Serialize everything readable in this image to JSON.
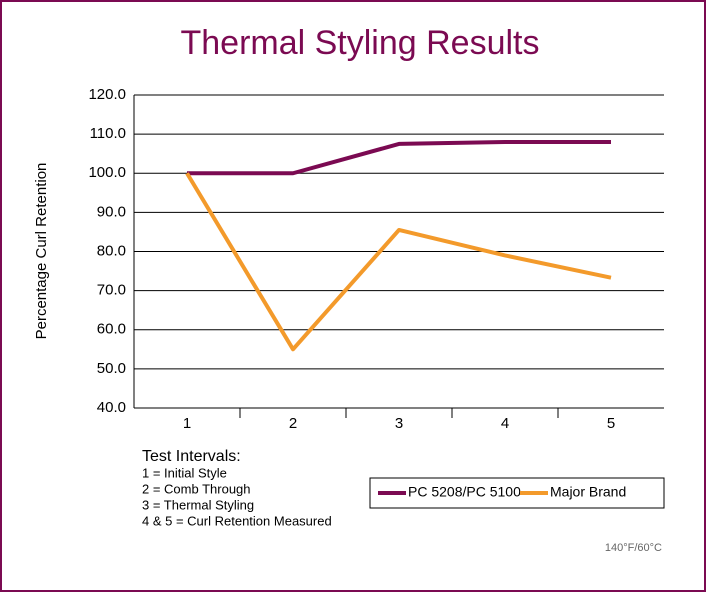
{
  "chart_data": {
    "type": "line",
    "title": "Thermal Styling Results",
    "y_label": "Percentage Curl Retention",
    "categories": [
      "1",
      "2",
      "3",
      "4",
      "5"
    ],
    "series": [
      {
        "name": "PC 5208/PC 5100",
        "color": "#7b0a52",
        "values": [
          100,
          100,
          107.5,
          108,
          108
        ]
      },
      {
        "name": "Major Brand",
        "color": "#f39a2b",
        "values": [
          100,
          55,
          85.5,
          79,
          73.3
        ]
      }
    ],
    "ylim": [
      40,
      120
    ],
    "yticks": [
      {
        "value": 40,
        "label": "40.0"
      },
      {
        "value": 50,
        "label": "50.0"
      },
      {
        "value": 60,
        "label": "60.0"
      },
      {
        "value": 70,
        "label": "70.0"
      },
      {
        "value": 80,
        "label": "80.0"
      },
      {
        "value": 90,
        "label": "90.0"
      },
      {
        "value": 100,
        "label": "100.0"
      },
      {
        "value": 110,
        "label": "110.0"
      },
      {
        "value": 120,
        "label": "120.0"
      }
    ],
    "grid": true,
    "notes": [
      "Test Intervals:",
      "1 = Initial Style",
      "2 = Comb Through",
      "3 = Thermal Styling",
      "4 & 5 = Curl Retention Measured"
    ],
    "annotation": "140°F/60°C"
  }
}
